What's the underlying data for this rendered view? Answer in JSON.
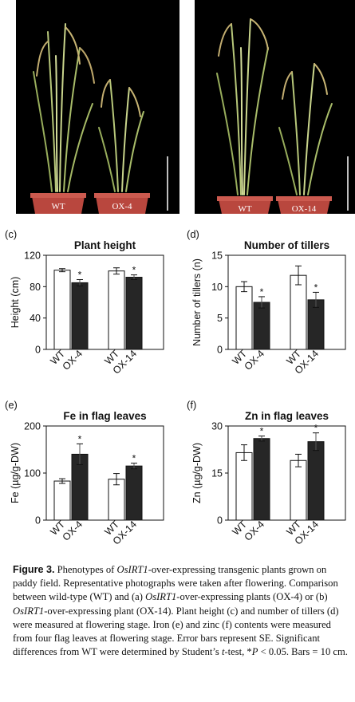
{
  "photos": [
    {
      "pot_labels": [
        "WT",
        "OX-4"
      ]
    },
    {
      "pot_labels": [
        "WT",
        "OX-14"
      ]
    }
  ],
  "chart_data": [
    {
      "panel": "(c)",
      "type": "bar",
      "title": "Plant height",
      "ylabel": "Height (cm)",
      "ylim": [
        0,
        120
      ],
      "yticks": [
        0,
        40,
        80,
        120
      ],
      "categories": [
        "WT",
        "OX-4",
        "WT",
        "OX-14"
      ],
      "values": [
        101,
        85,
        100,
        92
      ],
      "errors": [
        2,
        4,
        4,
        3
      ],
      "fills": [
        "#ffffff",
        "#262626",
        "#ffffff",
        "#262626"
      ],
      "significant": [
        false,
        true,
        false,
        true
      ]
    },
    {
      "panel": "(d)",
      "type": "bar",
      "title": "Number of tillers",
      "ylabel": "Number of tillers (n)",
      "ylim": [
        0,
        15
      ],
      "yticks": [
        0,
        5,
        10,
        15
      ],
      "categories": [
        "WT",
        "OX-4",
        "WT",
        "OX-14"
      ],
      "values": [
        10,
        7.5,
        11.8,
        7.9
      ],
      "errors": [
        0.8,
        0.9,
        1.5,
        1.2
      ],
      "fills": [
        "#ffffff",
        "#262626",
        "#ffffff",
        "#262626"
      ],
      "significant": [
        false,
        true,
        false,
        true
      ]
    },
    {
      "panel": "(e)",
      "type": "bar",
      "title": "Fe in flag leaves",
      "ylabel": "Fe (µg/g-DW)",
      "ylim": [
        0,
        200
      ],
      "yticks": [
        0,
        100,
        200
      ],
      "categories": [
        "WT",
        "OX-4",
        "WT",
        "OX-14"
      ],
      "values": [
        83,
        140,
        87,
        115
      ],
      "errors": [
        5,
        22,
        12,
        6
      ],
      "fills": [
        "#ffffff",
        "#262626",
        "#ffffff",
        "#262626"
      ],
      "significant": [
        false,
        true,
        false,
        true
      ]
    },
    {
      "panel": "(f)",
      "type": "bar",
      "title": "Zn in flag leaves",
      "ylabel": "Zn (µg/g-DW)",
      "ylim": [
        0,
        30
      ],
      "yticks": [
        0,
        15,
        30
      ],
      "categories": [
        "WT",
        "OX-4",
        "WT",
        "OX-14"
      ],
      "values": [
        21.5,
        26,
        19,
        25
      ],
      "errors": [
        2.5,
        0.8,
        2,
        2.8
      ],
      "fills": [
        "#ffffff",
        "#262626",
        "#ffffff",
        "#262626"
      ],
      "significant": [
        false,
        true,
        false,
        true
      ]
    }
  ],
  "caption": {
    "label": "Figure 3.",
    "t1": " Phenotypes of ",
    "gene1": "OsIRT1",
    "t2": "-over-expressing transgenic plants grown on paddy field. Representative photographs were taken after flowering. Comparison between wild-type (WT) and (a) ",
    "gene2": "OsIRT1",
    "t3": "-over-expressing plants (OX-4) or (b) ",
    "gene3": "OsIRT1",
    "t4": "-over-expressing plant (OX-14). Plant height (c) and number of tillers (d) were measured at flowering stage. Iron (e) and zinc (f) contents were measured from four flag leaves at flowering stage. Error bars represent SE. Significant differences from WT were determined by Student’s ",
    "t_ital": "t",
    "t5": "-test, *",
    "p_ital": "P",
    "t6": " < 0.05. Bars = 10 cm."
  }
}
